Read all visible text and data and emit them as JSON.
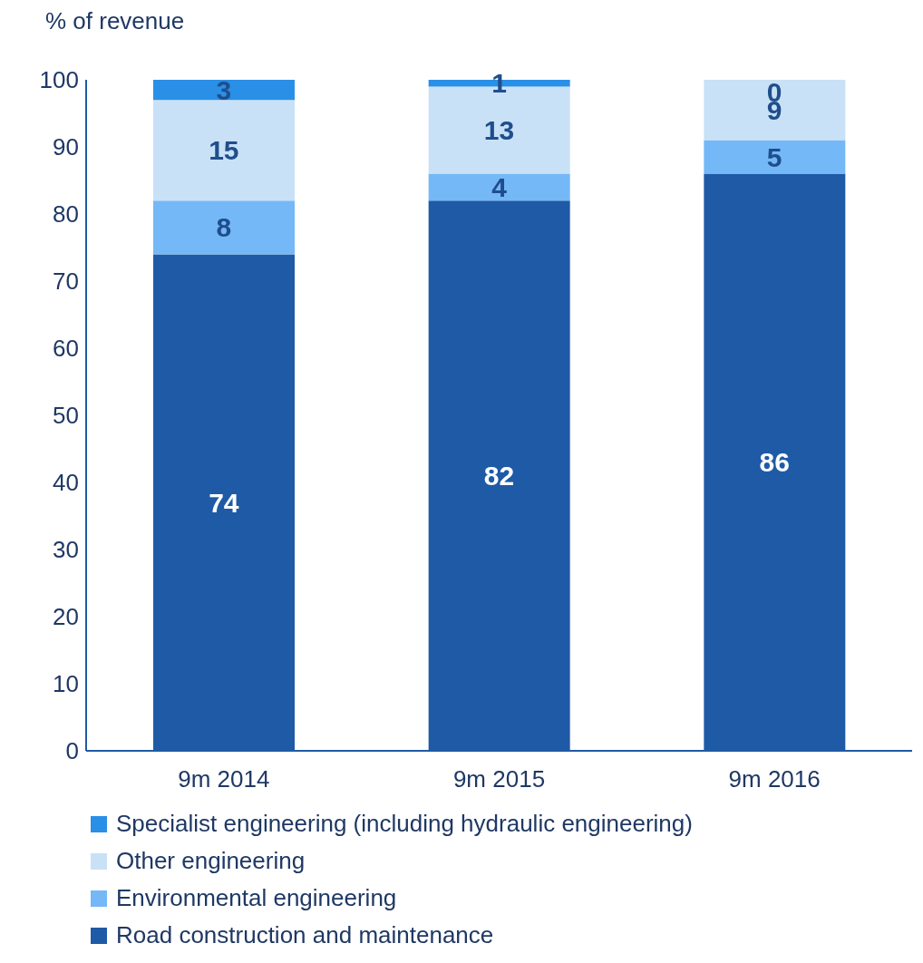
{
  "chart_data": {
    "type": "bar",
    "ylabel": "% of revenue",
    "categories": [
      "9m 2014",
      "9m 2015",
      "9m 2016"
    ],
    "stacked": true,
    "data_labels": true,
    "grid": false,
    "legend": "bottom",
    "ylim": [
      0,
      100
    ],
    "yticks": [
      0,
      10,
      20,
      30,
      40,
      50,
      60,
      70,
      80,
      90,
      100
    ],
    "series": [
      {
        "name": "Road construction and maintenance",
        "color": "#1f5aa6",
        "values": [
          74,
          82,
          86
        ]
      },
      {
        "name": "Environmental engineering",
        "color": "#74b8f8",
        "values": [
          8,
          4,
          5
        ]
      },
      {
        "name": "Other engineering",
        "color": "#c9e1f7",
        "values": [
          15,
          13,
          9
        ]
      },
      {
        "name": "Specialist engineering (including hydraulic engineering)",
        "color": "#2a8fe6",
        "values": [
          3,
          1,
          0
        ]
      }
    ]
  }
}
